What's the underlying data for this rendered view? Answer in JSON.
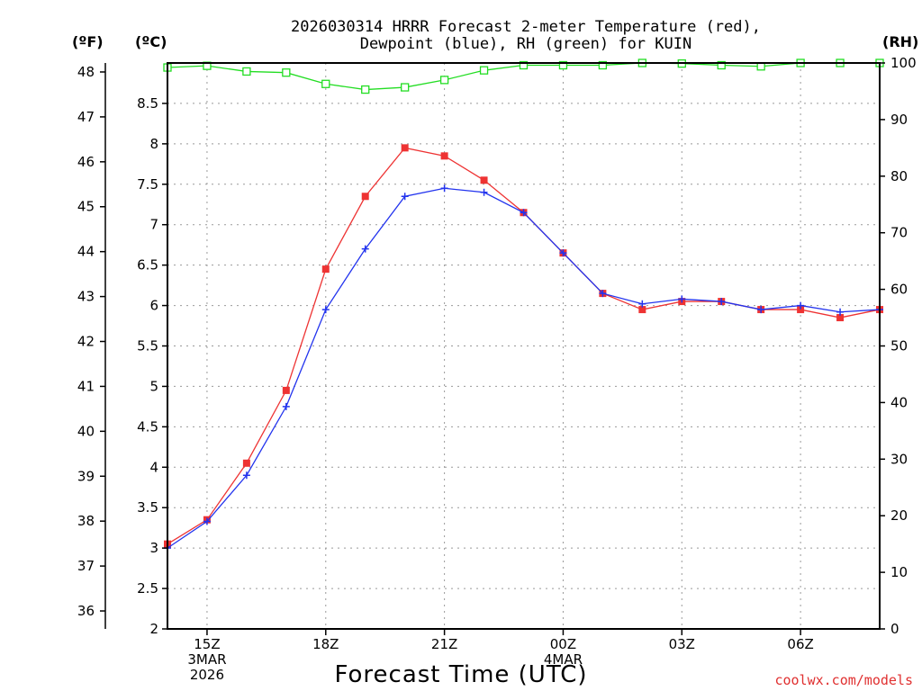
{
  "chart_data": {
    "type": "line",
    "title_lines": [
      "2026030314 HRRR Forecast 2-meter Temperature (red),",
      "Dewpoint (blue), RH (green) for KUIN"
    ],
    "xlabel": "Forecast Time (UTC)",
    "credit": "coolwx.com/models",
    "units": {
      "fahrenheit": "(ºF)",
      "celsius": "(ºC)",
      "rh": "(RH)"
    },
    "x_hours": [
      14,
      15,
      16,
      17,
      18,
      19,
      20,
      21,
      22,
      23,
      24,
      25,
      26,
      27,
      28,
      29,
      30,
      31,
      32
    ],
    "x_ticks": [
      {
        "hour": 15,
        "lines": [
          "15Z",
          "3MAR",
          "2026"
        ]
      },
      {
        "hour": 18,
        "lines": [
          "18Z"
        ]
      },
      {
        "hour": 21,
        "lines": [
          "21Z"
        ]
      },
      {
        "hour": 24,
        "lines": [
          "00Z",
          "4MAR"
        ]
      },
      {
        "hour": 27,
        "lines": [
          "03Z"
        ]
      },
      {
        "hour": 30,
        "lines": [
          "06Z"
        ]
      }
    ],
    "xlim": [
      14,
      32
    ],
    "celsius_axis": {
      "ylim": [
        2,
        9
      ],
      "ticks": [
        "2",
        "2.5",
        "3",
        "3.5",
        "4",
        "4.5",
        "5",
        "5.5",
        "6",
        "6.5",
        "7",
        "7.5",
        "8",
        "8.5"
      ]
    },
    "fahrenheit_axis": {
      "ticks": [
        "36",
        "37",
        "38",
        "39",
        "40",
        "41",
        "42",
        "43",
        "44",
        "45",
        "46",
        "47",
        "48"
      ]
    },
    "rh_axis": {
      "ylim": [
        0,
        100
      ],
      "ticks": [
        "0",
        "10",
        "20",
        "30",
        "40",
        "50",
        "60",
        "70",
        "80",
        "90",
        "100"
      ]
    },
    "series": [
      {
        "name": "Temperature",
        "color": "#ee3333",
        "axis": "celsius",
        "marker": "filled-square",
        "values": [
          3.05,
          3.35,
          4.05,
          4.95,
          6.45,
          7.35,
          7.95,
          7.85,
          7.55,
          7.15,
          6.65,
          6.15,
          5.95,
          6.05,
          6.05,
          5.95,
          5.95,
          5.85,
          5.95
        ]
      },
      {
        "name": "Dewpoint",
        "color": "#2233ee",
        "axis": "celsius",
        "marker": "plus",
        "values": [
          3.0,
          3.33,
          3.9,
          4.75,
          5.95,
          6.7,
          7.35,
          7.45,
          7.4,
          7.15,
          6.65,
          6.15,
          6.02,
          6.08,
          6.05,
          5.95,
          6.0,
          5.92,
          5.95
        ]
      },
      {
        "name": "RH",
        "color": "#22dd22",
        "axis": "rh",
        "marker": "open-square",
        "values": [
          99.2,
          99.5,
          98.5,
          98.3,
          96.3,
          95.3,
          95.7,
          97.0,
          98.7,
          99.6,
          99.6,
          99.6,
          100,
          99.9,
          99.6,
          99.4,
          100,
          100,
          100
        ]
      }
    ]
  }
}
